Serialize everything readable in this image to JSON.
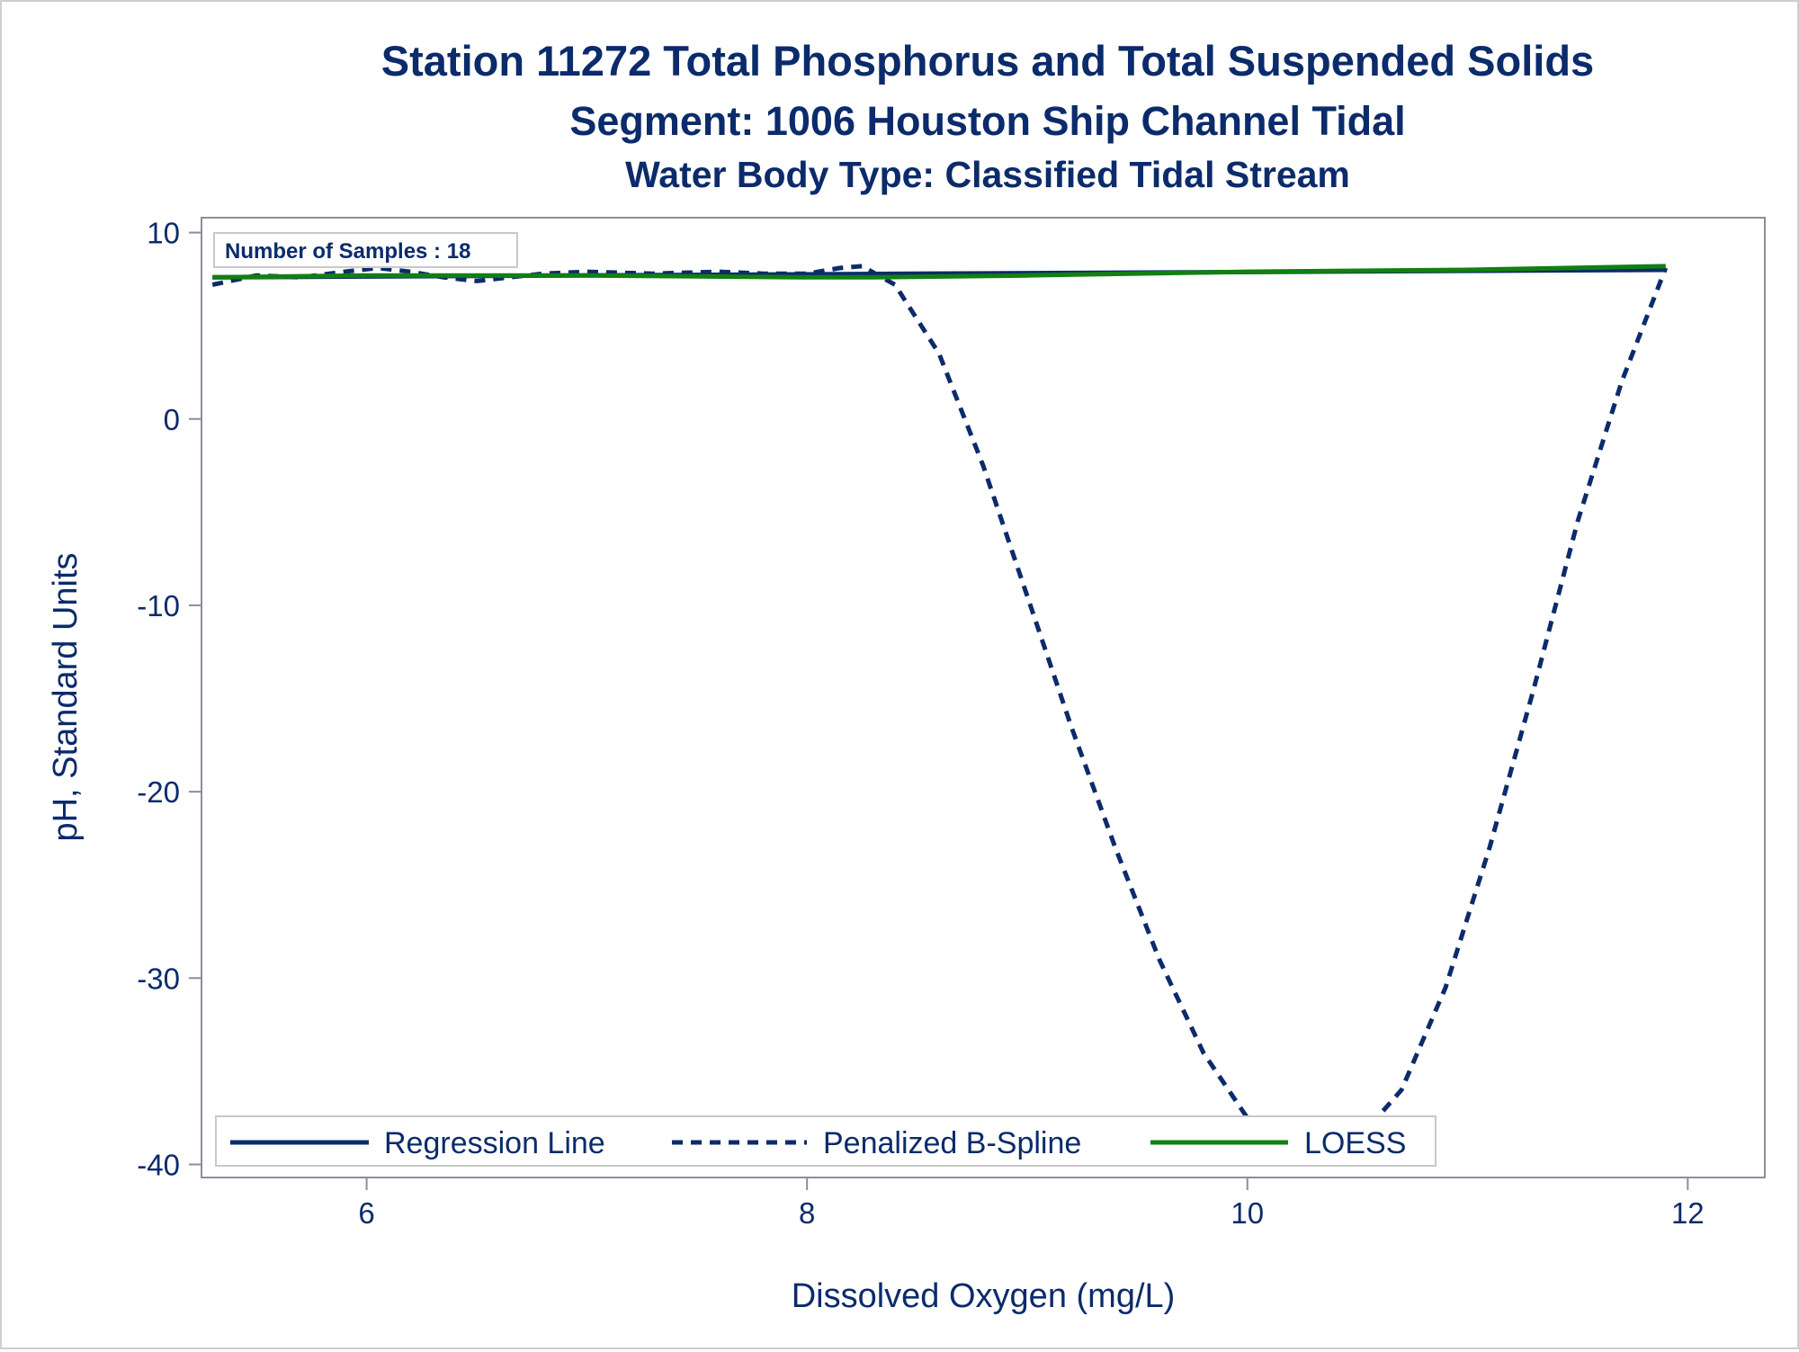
{
  "titles": {
    "line1": "Station 11272  Total Phosphorus and Total Suspended Solids",
    "line2": "Segment: 1006  Houston Ship Channel Tidal",
    "line3": "Water Body Type: Classified Tidal Stream"
  },
  "inset": {
    "text": "Number of Samples : 18"
  },
  "chart_data": {
    "type": "line",
    "xlabel": "Dissolved Oxygen (mg/L)",
    "ylabel": "pH, Standard Units",
    "xlim": [
      5.25,
      12.35
    ],
    "ylim": [
      -40.7,
      10.8
    ],
    "x_ticks": [
      6,
      8,
      10,
      12
    ],
    "y_ticks": [
      10,
      0,
      -10,
      -20,
      -30,
      -40
    ],
    "grid": false,
    "legend_position": "bottom-left inside",
    "series": [
      {
        "name": "Regression Line",
        "style": "solid",
        "color": "#0b2b6b",
        "x": [
          5.3,
          11.9
        ],
        "y": [
          7.6,
          8.0
        ]
      },
      {
        "name": "Penalized B-Spline",
        "style": "dashed",
        "color": "#0b2b6b",
        "x": [
          5.3,
          5.5,
          5.7,
          5.9,
          6.05,
          6.2,
          6.35,
          6.5,
          6.65,
          6.8,
          7.0,
          7.3,
          7.6,
          7.8,
          8.0,
          8.15,
          8.25,
          8.4,
          8.6,
          8.8,
          9.0,
          9.2,
          9.4,
          9.6,
          9.8,
          10.0,
          10.2,
          10.35,
          10.5,
          10.7,
          10.9,
          11.1,
          11.3,
          11.5,
          11.7,
          11.9
        ],
        "y": [
          7.2,
          7.7,
          7.6,
          7.9,
          8.1,
          7.9,
          7.6,
          7.4,
          7.6,
          7.8,
          7.9,
          7.8,
          7.9,
          7.8,
          7.8,
          8.1,
          8.2,
          7.2,
          3.5,
          -2.5,
          -9.5,
          -16.5,
          -23.0,
          -29.0,
          -34.0,
          -37.5,
          -38.8,
          -39.2,
          -38.7,
          -36.0,
          -30.5,
          -23.0,
          -14.5,
          -5.5,
          2.0,
          8.1
        ]
      },
      {
        "name": "LOESS",
        "style": "solid",
        "color": "#118011",
        "x": [
          5.3,
          6.0,
          7.0,
          8.0,
          8.3,
          9.0,
          10.0,
          11.0,
          11.9
        ],
        "y": [
          7.6,
          7.7,
          7.7,
          7.6,
          7.6,
          7.7,
          7.9,
          8.0,
          8.2
        ]
      }
    ]
  }
}
